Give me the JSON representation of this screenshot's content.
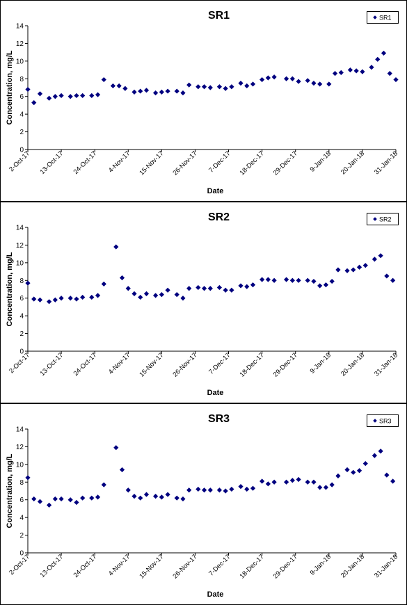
{
  "chart_data": [
    {
      "type": "scatter",
      "title": "SR1",
      "xlabel": "Date",
      "ylabel": "Concentration, mg/L",
      "ylim": [
        0,
        14
      ],
      "yticks": [
        0,
        2,
        4,
        6,
        8,
        10,
        12,
        14
      ],
      "xlim": [
        "2017-10-02",
        "2018-01-31"
      ],
      "xticks": [
        {
          "date": "2017-10-02",
          "label": "2-Oct-17"
        },
        {
          "date": "2017-10-13",
          "label": "13-Oct-17"
        },
        {
          "date": "2017-10-24",
          "label": "24-Oct-17"
        },
        {
          "date": "2017-11-04",
          "label": "4-Nov-17"
        },
        {
          "date": "2017-11-15",
          "label": "15-Nov-17"
        },
        {
          "date": "2017-11-26",
          "label": "26-Nov-17"
        },
        {
          "date": "2017-12-07",
          "label": "7-Dec-17"
        },
        {
          "date": "2017-12-18",
          "label": "18-Dec-17"
        },
        {
          "date": "2017-12-29",
          "label": "29-Dec-17"
        },
        {
          "date": "2018-01-09",
          "label": "9-Jan-18"
        },
        {
          "date": "2018-01-20",
          "label": "20-Jan-18"
        },
        {
          "date": "2018-01-31",
          "label": "31-Jan-18"
        }
      ],
      "grid": false,
      "legend_position": "top-right",
      "marker": "diamond",
      "color": "#00007f",
      "series": [
        {
          "name": "SR1",
          "x": [
            "2017-10-02",
            "2017-10-04",
            "2017-10-06",
            "2017-10-09",
            "2017-10-11",
            "2017-10-13",
            "2017-10-16",
            "2017-10-18",
            "2017-10-20",
            "2017-10-23",
            "2017-10-25",
            "2017-10-27",
            "2017-10-30",
            "2017-11-01",
            "2017-11-03",
            "2017-11-06",
            "2017-11-08",
            "2017-11-10",
            "2017-11-13",
            "2017-11-15",
            "2017-11-17",
            "2017-11-20",
            "2017-11-22",
            "2017-11-24",
            "2017-11-27",
            "2017-11-29",
            "2017-12-01",
            "2017-12-04",
            "2017-12-06",
            "2017-12-08",
            "2017-12-11",
            "2017-12-13",
            "2017-12-15",
            "2017-12-18",
            "2017-12-20",
            "2017-12-22",
            "2017-12-26",
            "2017-12-28",
            "2017-12-30",
            "2018-01-02",
            "2018-01-04",
            "2018-01-06",
            "2018-01-09",
            "2018-01-11",
            "2018-01-13",
            "2018-01-16",
            "2018-01-18",
            "2018-01-20",
            "2018-01-23",
            "2018-01-25",
            "2018-01-27",
            "2018-01-29",
            "2018-01-31"
          ],
          "values": [
            6.8,
            5.3,
            6.3,
            5.8,
            6.0,
            6.1,
            6.0,
            6.1,
            6.1,
            6.1,
            6.2,
            7.9,
            7.2,
            7.2,
            6.9,
            6.5,
            6.6,
            6.7,
            6.4,
            6.5,
            6.6,
            6.6,
            6.4,
            7.3,
            7.1,
            7.1,
            7.0,
            7.1,
            6.9,
            7.1,
            7.5,
            7.2,
            7.4,
            7.9,
            8.1,
            8.2,
            8.0,
            8.0,
            7.7,
            7.8,
            7.5,
            7.4,
            7.4,
            8.6,
            8.7,
            9.0,
            8.9,
            8.8,
            9.3,
            10.2,
            10.9,
            8.6,
            7.9
          ]
        }
      ]
    },
    {
      "type": "scatter",
      "title": "SR2",
      "xlabel": "Date",
      "ylabel": "Concentration, mg/L",
      "ylim": [
        0,
        14
      ],
      "yticks": [
        0,
        2,
        4,
        6,
        8,
        10,
        12,
        14
      ],
      "xlim": [
        "2017-10-02",
        "2018-01-31"
      ],
      "xticks": [
        {
          "date": "2017-10-02",
          "label": "2-Oct-17"
        },
        {
          "date": "2017-10-13",
          "label": "13-Oct-17"
        },
        {
          "date": "2017-10-24",
          "label": "24-Oct-17"
        },
        {
          "date": "2017-11-04",
          "label": "4-Nov-17"
        },
        {
          "date": "2017-11-15",
          "label": "15-Nov-17"
        },
        {
          "date": "2017-11-26",
          "label": "26-Nov-17"
        },
        {
          "date": "2017-12-07",
          "label": "7-Dec-17"
        },
        {
          "date": "2017-12-18",
          "label": "18-Dec-17"
        },
        {
          "date": "2017-12-29",
          "label": "29-Dec-17"
        },
        {
          "date": "2018-01-09",
          "label": "9-Jan-18"
        },
        {
          "date": "2018-01-20",
          "label": "20-Jan-18"
        },
        {
          "date": "2018-01-31",
          "label": "31-Jan-18"
        }
      ],
      "grid": false,
      "legend_position": "top-right",
      "marker": "diamond",
      "color": "#00007f",
      "series": [
        {
          "name": "SR2",
          "x": [
            "2017-10-02",
            "2017-10-04",
            "2017-10-06",
            "2017-10-09",
            "2017-10-11",
            "2017-10-13",
            "2017-10-16",
            "2017-10-18",
            "2017-10-20",
            "2017-10-23",
            "2017-10-25",
            "2017-10-27",
            "2017-10-31",
            "2017-11-02",
            "2017-11-04",
            "2017-11-06",
            "2017-11-08",
            "2017-11-10",
            "2017-11-13",
            "2017-11-15",
            "2017-11-17",
            "2017-11-20",
            "2017-11-22",
            "2017-11-24",
            "2017-11-27",
            "2017-11-29",
            "2017-12-01",
            "2017-12-04",
            "2017-12-06",
            "2017-12-08",
            "2017-12-11",
            "2017-12-13",
            "2017-12-15",
            "2017-12-18",
            "2017-12-20",
            "2017-12-22",
            "2017-12-26",
            "2017-12-28",
            "2017-12-30",
            "2018-01-02",
            "2018-01-04",
            "2018-01-06",
            "2018-01-08",
            "2018-01-10",
            "2018-01-12",
            "2018-01-15",
            "2018-01-17",
            "2018-01-19",
            "2018-01-21",
            "2018-01-24",
            "2018-01-26",
            "2018-01-28",
            "2018-01-30"
          ],
          "values": [
            7.7,
            5.9,
            5.8,
            5.6,
            5.8,
            6.0,
            6.0,
            5.9,
            6.1,
            6.1,
            6.3,
            7.6,
            11.8,
            8.3,
            7.1,
            6.5,
            6.1,
            6.5,
            6.3,
            6.4,
            6.9,
            6.4,
            6.0,
            7.1,
            7.2,
            7.1,
            7.1,
            7.2,
            6.9,
            6.9,
            7.4,
            7.3,
            7.5,
            8.1,
            8.1,
            8.0,
            8.1,
            8.0,
            8.0,
            8.0,
            7.9,
            7.4,
            7.5,
            7.9,
            9.2,
            9.1,
            9.2,
            9.5,
            9.7,
            10.4,
            10.8,
            8.5,
            8.0
          ]
        }
      ]
    },
    {
      "type": "scatter",
      "title": "SR3",
      "xlabel": "Date",
      "ylabel": "Concentration, mg/L",
      "ylim": [
        0,
        14
      ],
      "yticks": [
        0,
        2,
        4,
        6,
        8,
        10,
        12,
        14
      ],
      "xlim": [
        "2017-10-02",
        "2018-01-31"
      ],
      "xticks": [
        {
          "date": "2017-10-02",
          "label": "2-Oct-17"
        },
        {
          "date": "2017-10-13",
          "label": "13-Oct-17"
        },
        {
          "date": "2017-10-24",
          "label": "24-Oct-17"
        },
        {
          "date": "2017-11-04",
          "label": "4-Nov-17"
        },
        {
          "date": "2017-11-15",
          "label": "15-Nov-17"
        },
        {
          "date": "2017-11-26",
          "label": "26-Nov-17"
        },
        {
          "date": "2017-12-07",
          "label": "7-Dec-17"
        },
        {
          "date": "2017-12-18",
          "label": "18-Dec-17"
        },
        {
          "date": "2017-12-29",
          "label": "29-Dec-17"
        },
        {
          "date": "2018-01-09",
          "label": "9-Jan-18"
        },
        {
          "date": "2018-01-20",
          "label": "20-Jan-18"
        },
        {
          "date": "2018-01-31",
          "label": "31-Jan-18"
        }
      ],
      "grid": false,
      "legend_position": "top-right",
      "marker": "diamond",
      "color": "#00007f",
      "series": [
        {
          "name": "SR3",
          "x": [
            "2017-10-02",
            "2017-10-04",
            "2017-10-06",
            "2017-10-09",
            "2017-10-11",
            "2017-10-13",
            "2017-10-16",
            "2017-10-18",
            "2017-10-20",
            "2017-10-23",
            "2017-10-25",
            "2017-10-27",
            "2017-10-31",
            "2017-11-02",
            "2017-11-04",
            "2017-11-06",
            "2017-11-08",
            "2017-11-10",
            "2017-11-13",
            "2017-11-15",
            "2017-11-17",
            "2017-11-20",
            "2017-11-22",
            "2017-11-24",
            "2017-11-27",
            "2017-11-29",
            "2017-12-01",
            "2017-12-04",
            "2017-12-06",
            "2017-12-08",
            "2017-12-11",
            "2017-12-13",
            "2017-12-15",
            "2017-12-18",
            "2017-12-20",
            "2017-12-22",
            "2017-12-26",
            "2017-12-28",
            "2017-12-30",
            "2018-01-02",
            "2018-01-04",
            "2018-01-06",
            "2018-01-08",
            "2018-01-10",
            "2018-01-12",
            "2018-01-15",
            "2018-01-17",
            "2018-01-19",
            "2018-01-21",
            "2018-01-24",
            "2018-01-26",
            "2018-01-28",
            "2018-01-30"
          ],
          "values": [
            8.5,
            6.1,
            5.8,
            5.4,
            6.1,
            6.1,
            6.0,
            5.7,
            6.2,
            6.2,
            6.3,
            7.7,
            11.9,
            9.4,
            7.1,
            6.4,
            6.2,
            6.6,
            6.4,
            6.3,
            6.6,
            6.2,
            6.1,
            7.1,
            7.2,
            7.1,
            7.1,
            7.1,
            7.0,
            7.2,
            7.5,
            7.2,
            7.3,
            8.1,
            7.8,
            8.0,
            8.0,
            8.2,
            8.3,
            8.0,
            8.0,
            7.4,
            7.4,
            7.7,
            8.7,
            9.4,
            9.1,
            9.3,
            10.1,
            11.0,
            11.5,
            8.8,
            8.1
          ]
        }
      ]
    }
  ]
}
